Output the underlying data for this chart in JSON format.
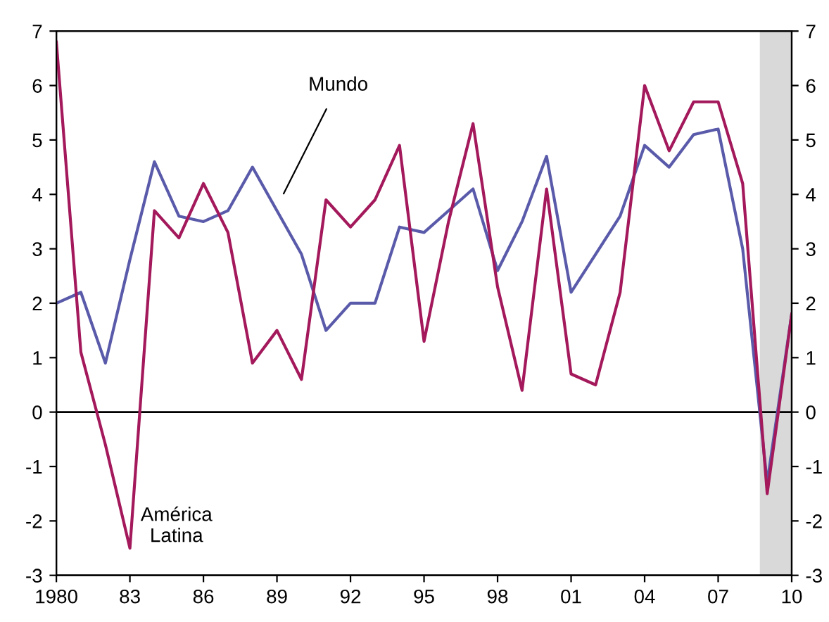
{
  "chart_data": {
    "type": "line",
    "x": [
      1980,
      1981,
      1982,
      1983,
      1984,
      1985,
      1986,
      1987,
      1988,
      1989,
      1990,
      1991,
      1992,
      1993,
      1994,
      1995,
      1996,
      1997,
      1998,
      1999,
      2000,
      2001,
      2002,
      2003,
      2004,
      2005,
      2006,
      2007,
      2008,
      2009,
      2010
    ],
    "series": [
      {
        "name": "Mundo",
        "color": "#5a5aaa",
        "values": [
          2.0,
          2.2,
          0.9,
          2.8,
          4.6,
          3.6,
          3.5,
          3.7,
          4.5,
          3.7,
          2.9,
          1.5,
          2.0,
          2.0,
          3.4,
          3.3,
          3.7,
          4.1,
          2.6,
          3.5,
          4.7,
          2.2,
          2.9,
          3.6,
          4.9,
          4.5,
          5.1,
          5.2,
          3.0,
          -1.3,
          1.8
        ]
      },
      {
        "name": "América\nLatina",
        "color": "#a3195b",
        "values": [
          6.8,
          1.1,
          -0.6,
          -2.5,
          3.7,
          3.2,
          4.2,
          3.3,
          0.9,
          1.5,
          0.6,
          3.9,
          3.4,
          3.9,
          4.9,
          1.3,
          3.5,
          5.3,
          2.3,
          0.4,
          4.1,
          0.7,
          0.5,
          2.2,
          6.0,
          4.8,
          5.7,
          5.7,
          4.2,
          -1.5,
          1.8
        ]
      }
    ],
    "xlim": [
      1980,
      2010
    ],
    "xticks": [
      {
        "value": 1980,
        "label": "1980"
      },
      {
        "value": 1983,
        "label": "83"
      },
      {
        "value": 1986,
        "label": "86"
      },
      {
        "value": 1989,
        "label": "89"
      },
      {
        "value": 1992,
        "label": "92"
      },
      {
        "value": 1995,
        "label": "95"
      },
      {
        "value": 1998,
        "label": "98"
      },
      {
        "value": 2001,
        "label": "01"
      },
      {
        "value": 2004,
        "label": "04"
      },
      {
        "value": 2007,
        "label": "07"
      },
      {
        "value": 2010,
        "label": "10"
      }
    ],
    "ylim": [
      -3,
      7
    ],
    "yticks": [
      -3,
      -2,
      -1,
      0,
      1,
      2,
      3,
      4,
      5,
      6,
      7
    ],
    "y2lim": [
      -3,
      7
    ],
    "y2ticks": [
      -3,
      -2,
      -1,
      0,
      1,
      2,
      3,
      4,
      5,
      6,
      7
    ],
    "ref_lines": [
      {
        "axis": "y",
        "value": 0,
        "color": "#000000"
      }
    ],
    "bands": [
      {
        "axis": "x",
        "from": 2008.7,
        "to": 2010,
        "color": "#d9d9d9"
      }
    ],
    "grid": false,
    "legend": false
  }
}
